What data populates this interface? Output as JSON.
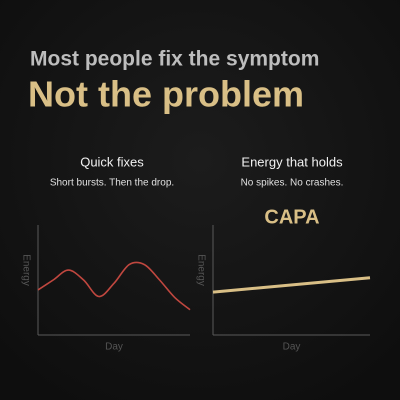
{
  "header": {
    "subtitle": "Most people fix the symptom",
    "title": "Not the problem"
  },
  "chart_data": [
    {
      "type": "line",
      "title": "Quick fixes",
      "subtitle": "Short bursts. Then the drop.",
      "x_label": "Day",
      "y_label": "Energy",
      "x": [
        0,
        1,
        2,
        3,
        4,
        5,
        6,
        7,
        8,
        9,
        10
      ],
      "series": [
        {
          "color": "#c0473f",
          "values": [
            4.1,
            5,
            5.9,
            5,
            3.5,
            4.7,
            6.4,
            6.4,
            5,
            3.4,
            2.3
          ]
        }
      ],
      "xlim": [
        0,
        10
      ],
      "ylim": [
        0,
        10
      ]
    },
    {
      "type": "line",
      "title": "Energy that holds",
      "subtitle": "No spikes. No crashes.",
      "annotation": "CAPA",
      "x_label": "Day",
      "y_label": "Energy",
      "x": [
        0,
        10
      ],
      "series": [
        {
          "color": "#d9bf86",
          "values": [
            3.9,
            5.2
          ]
        }
      ],
      "xlim": [
        0,
        10
      ],
      "ylim": [
        0,
        10
      ]
    }
  ]
}
